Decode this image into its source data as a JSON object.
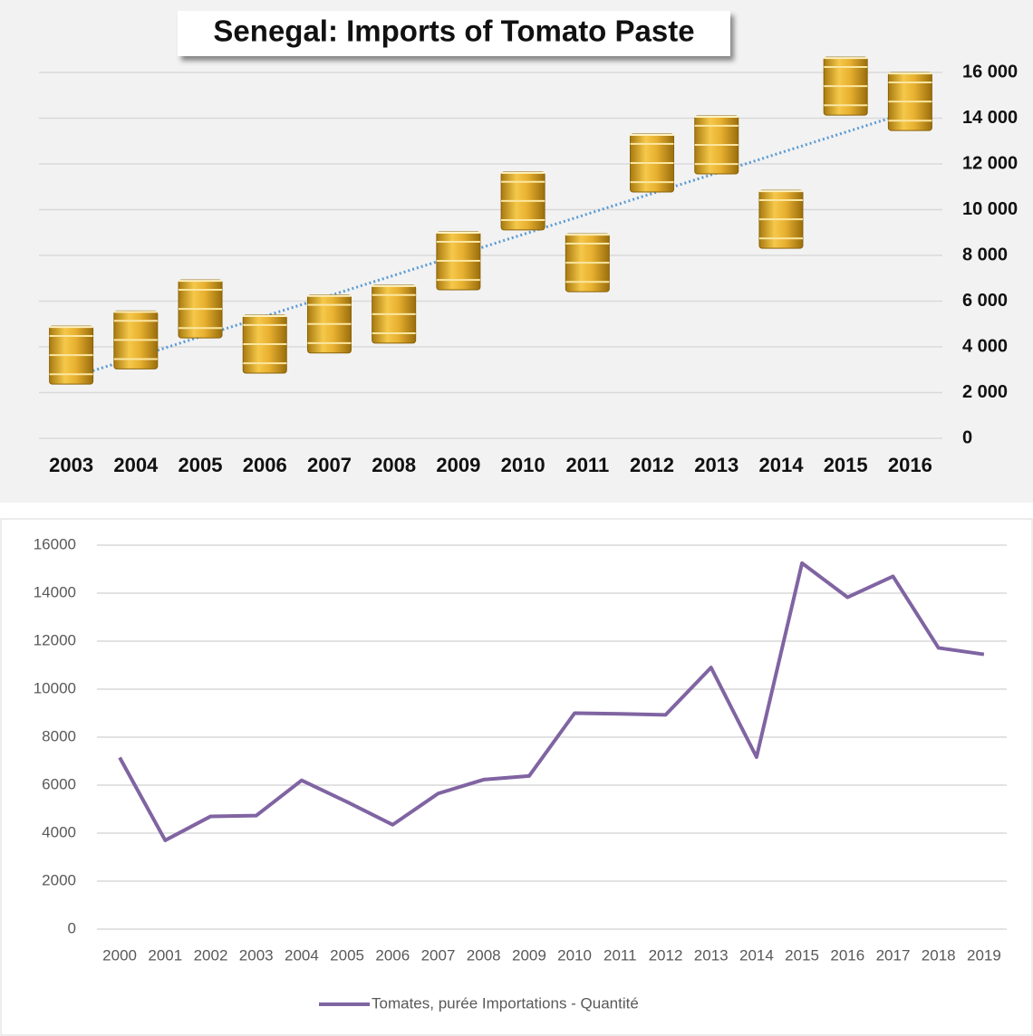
{
  "chart_data": [
    {
      "type": "pictograph",
      "title": "Senegal: Imports of Tomato Paste",
      "categories": [
        "2003",
        "2004",
        "2005",
        "2006",
        "2007",
        "2008",
        "2009",
        "2010",
        "2011",
        "2012",
        "2013",
        "2014",
        "2015",
        "2016"
      ],
      "values": [
        3640,
        4300,
        5660,
        4120,
        5000,
        5430,
        7760,
        10380,
        7680,
        12040,
        12830,
        9580,
        15400,
        14730
      ],
      "color": "#e8b030",
      "trend_color": "#5b9bd5",
      "ylim": [
        0,
        16000
      ],
      "yticks": [
        0,
        {
          "value": 2000,
          "label": "2 000"
        },
        {
          "value": 4000,
          "label": "4 000"
        },
        {
          "value": 6000,
          "label": "6 000"
        },
        {
          "value": 8000,
          "label": "8 000"
        },
        {
          "value": 10000,
          "label": "10 000"
        },
        {
          "value": 12000,
          "label": "12 000"
        },
        {
          "value": 14000,
          "label": "14 000"
        },
        {
          "value": 16000,
          "label": "16 000"
        }
      ],
      "grid": true,
      "trendline": true
    },
    {
      "type": "line",
      "categories": [
        "2000",
        "2001",
        "2002",
        "2003",
        "2004",
        "2005",
        "2006",
        "2007",
        "2008",
        "2009",
        "2010",
        "2011",
        "2012",
        "2013",
        "2014",
        "2015",
        "2016",
        "2017",
        "2018",
        "2019"
      ],
      "series": [
        {
          "name": "Tomates, purée Importations - Quantité",
          "color": "#8064a2",
          "values": [
            7150,
            3700,
            4700,
            4730,
            6200,
            5300,
            4350,
            5650,
            6230,
            6380,
            9000,
            8970,
            8930,
            10900,
            7170,
            15250,
            13830,
            14700,
            11720,
            11450
          ]
        }
      ],
      "ylim": [
        0,
        16000
      ],
      "yticks": [
        0,
        2000,
        4000,
        6000,
        8000,
        10000,
        12000,
        14000,
        16000
      ],
      "grid": true,
      "legend": "bottom"
    }
  ]
}
